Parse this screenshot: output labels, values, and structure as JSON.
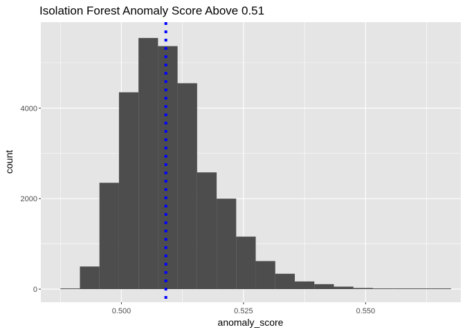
{
  "chart_data": {
    "type": "histogram",
    "title": "Isolation Forest Anomaly Score Above 0.51",
    "xlabel": "anomaly_score",
    "ylabel": "count",
    "xlim": [
      0.4835,
      0.5695
    ],
    "ylim": [
      -290,
      5900
    ],
    "x_ticks": [
      {
        "value": 0.5,
        "label": "0.500"
      },
      {
        "value": 0.525,
        "label": "0.525"
      },
      {
        "value": 0.55,
        "label": "0.550"
      }
    ],
    "y_ticks": [
      {
        "value": 0,
        "label": "0"
      },
      {
        "value": 2000,
        "label": "2000"
      },
      {
        "value": 4000,
        "label": "4000"
      }
    ],
    "bin_width": 0.004,
    "bins": [
      {
        "x": 0.4895,
        "count": 8
      },
      {
        "x": 0.4935,
        "count": 500
      },
      {
        "x": 0.4975,
        "count": 2350
      },
      {
        "x": 0.5015,
        "count": 4350
      },
      {
        "x": 0.5055,
        "count": 5550
      },
      {
        "x": 0.5095,
        "count": 5370
      },
      {
        "x": 0.5135,
        "count": 4550
      },
      {
        "x": 0.5175,
        "count": 2580
      },
      {
        "x": 0.5215,
        "count": 2000
      },
      {
        "x": 0.5255,
        "count": 1160
      },
      {
        "x": 0.5295,
        "count": 620
      },
      {
        "x": 0.5335,
        "count": 340
      },
      {
        "x": 0.5375,
        "count": 170
      },
      {
        "x": 0.5415,
        "count": 110
      },
      {
        "x": 0.5455,
        "count": 55
      },
      {
        "x": 0.5495,
        "count": 25
      },
      {
        "x": 0.5535,
        "count": 10
      },
      {
        "x": 0.5575,
        "count": 3
      },
      {
        "x": 0.5615,
        "count": 8
      },
      {
        "x": 0.5655,
        "count": 8
      }
    ],
    "reference_line": {
      "x": 0.5091,
      "color": "#0000ff",
      "style": "dotted"
    },
    "bar_color": "#4d4d4d",
    "panel_background": "#e5e5e5",
    "grid_color": "#ffffff",
    "grid": true,
    "legend": "none"
  }
}
